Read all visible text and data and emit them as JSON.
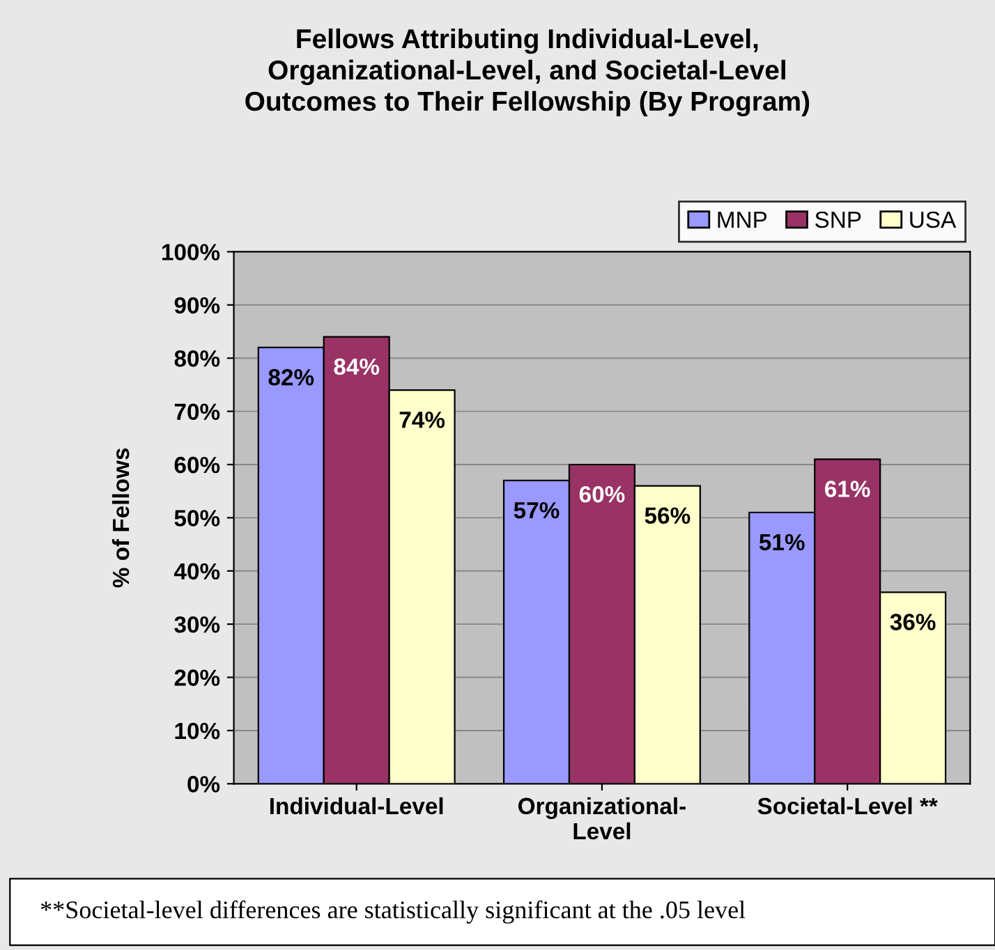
{
  "chart_data": {
    "type": "bar",
    "title": "Fellows Attributing Individual-Level,\nOrganizational-Level, and Societal-Level\nOutcomes to Their Fellowship (By Program)",
    "ylabel": "% of Fellows",
    "categories": [
      "Individual-Level",
      "Organizational-\nLevel",
      "Societal-Level **"
    ],
    "series": [
      {
        "name": "MNP",
        "color": "#9999ff",
        "values": [
          82,
          57,
          51
        ],
        "value_labels": [
          "82%",
          "57%",
          "51%"
        ]
      },
      {
        "name": "SNP",
        "color": "#993366",
        "values": [
          84,
          60,
          61
        ],
        "value_labels": [
          "84%",
          "60%",
          "61%"
        ]
      },
      {
        "name": "USA",
        "color": "#ffffcc",
        "values": [
          74,
          56,
          36
        ],
        "value_labels": [
          "74%",
          "56%",
          "36%"
        ]
      }
    ],
    "ylim": [
      0,
      100
    ],
    "yticks": [
      {
        "value": 0,
        "label": "0%"
      },
      {
        "value": 10,
        "label": "10%"
      },
      {
        "value": 20,
        "label": "20%"
      },
      {
        "value": 30,
        "label": "30%"
      },
      {
        "value": 40,
        "label": "40%"
      },
      {
        "value": 50,
        "label": "50%"
      },
      {
        "value": 60,
        "label": "60%"
      },
      {
        "value": 70,
        "label": "70%"
      },
      {
        "value": 80,
        "label": "80%"
      },
      {
        "value": 90,
        "label": "90%"
      },
      {
        "value": 100,
        "label": "100%"
      }
    ],
    "grid": "y",
    "legend": "top right",
    "annotations": [
      "**Societal-level differences are statistically significant at the .05 level"
    ]
  }
}
